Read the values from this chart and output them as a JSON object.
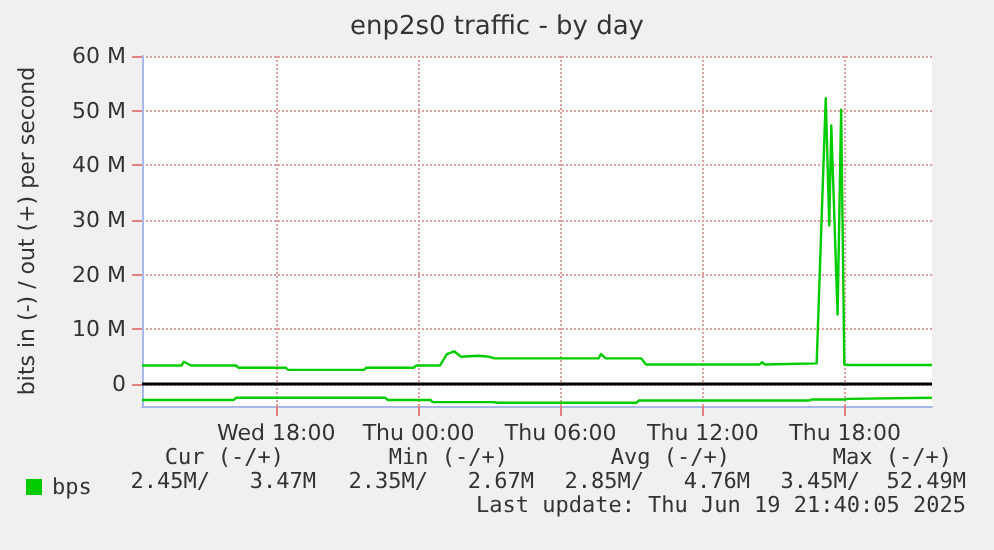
{
  "chart_data": {
    "type": "line",
    "title": "enp2s0 traffic - by day",
    "ylabel": "bits in (-) / out (+) per second",
    "xlim": [
      "2025-06-18T12:20",
      "2025-06-19T21:40"
    ],
    "xticks": [
      {
        "value": "2025-06-18T18:00",
        "label": "Wed 18:00"
      },
      {
        "value": "2025-06-19T00:00",
        "label": "Thu 00:00"
      },
      {
        "value": "2025-06-19T06:00",
        "label": "Thu 06:00"
      },
      {
        "value": "2025-06-19T12:00",
        "label": "Thu 12:00"
      },
      {
        "value": "2025-06-19T18:00",
        "label": "Thu 18:00"
      }
    ],
    "ylim": [
      -4,
      60
    ],
    "yticks": [
      {
        "value": 0,
        "label": "0"
      },
      {
        "value": 10,
        "label": "10 M"
      },
      {
        "value": 20,
        "label": "20 M"
      },
      {
        "value": 30,
        "label": "30 M"
      },
      {
        "value": 40,
        "label": "40 M"
      },
      {
        "value": 50,
        "label": "50 M"
      },
      {
        "value": 60,
        "label": "60 M"
      }
    ],
    "grid": true,
    "legend": "bottom left",
    "marker": "none",
    "line_style": "solid",
    "series": [
      {
        "name": "bps",
        "color": "#00cc00",
        "x": [
          "2025-06-18T12:20",
          "2025-06-18T14:00",
          "2025-06-18T14:06",
          "2025-06-18T14:24",
          "2025-06-18T16:18",
          "2025-06-18T16:24",
          "2025-06-18T18:24",
          "2025-06-18T18:30",
          "2025-06-18T21:42",
          "2025-06-18T21:48",
          "2025-06-18T23:48",
          "2025-06-18T23:54",
          "2025-06-19T00:54",
          "2025-06-19T01:12",
          "2025-06-19T01:30",
          "2025-06-19T01:48",
          "2025-06-19T02:30",
          "2025-06-19T03:00",
          "2025-06-19T03:12",
          "2025-06-19T07:36",
          "2025-06-19T07:42",
          "2025-06-19T07:54",
          "2025-06-19T09:24",
          "2025-06-19T09:36",
          "2025-06-19T14:24",
          "2025-06-19T14:30",
          "2025-06-19T14:36",
          "2025-06-19T16:48",
          "2025-06-19T17:11",
          "2025-06-19T17:20",
          "2025-06-19T17:25",
          "2025-06-19T17:41",
          "2025-06-19T17:50",
          "2025-06-19T17:58",
          "2025-06-19T18:12",
          "2025-06-19T21:40"
        ],
        "values": [
          3.4,
          3.4,
          4.1,
          3.4,
          3.4,
          3.0,
          3.0,
          2.6,
          2.6,
          3.0,
          3.0,
          3.4,
          3.4,
          5.5,
          6.0,
          5.0,
          5.2,
          5.0,
          4.7,
          4.7,
          5.5,
          4.7,
          4.7,
          3.6,
          3.6,
          4.0,
          3.6,
          3.8,
          52.3,
          29,
          47.3,
          12.7,
          50.2,
          3.6,
          3.5,
          3.5
        ]
      },
      {
        "color": "#00cc00",
        "x": [
          "2025-06-18T12:20",
          "2025-06-18T16:12",
          "2025-06-18T16:18",
          "2025-06-18T22:36",
          "2025-06-18T22:42",
          "2025-06-19T00:30",
          "2025-06-19T00:36",
          "2025-06-19T03:12",
          "2025-06-19T03:18",
          "2025-06-19T09:12",
          "2025-06-19T09:18",
          "2025-06-19T16:30",
          "2025-06-19T16:36",
          "2025-06-19T18:00",
          "2025-06-19T18:06",
          "2025-06-19T21:40"
        ],
        "values": [
          -2.9,
          -2.9,
          -2.5,
          -2.5,
          -2.9,
          -2.9,
          -3.3,
          -3.3,
          -3.4,
          -3.4,
          -3.0,
          -3.0,
          -2.8,
          -2.8,
          -2.7,
          -2.5
        ]
      }
    ],
    "ref_lines": [
      {
        "axis": "y",
        "value": 0,
        "color": "#000000"
      }
    ],
    "annotations": [
      "Cur (-/+)",
      "Min (-/+)",
      "Avg (-/+)",
      "Max (-/+)",
      "2.45M/   3.47M",
      "2.35M/   2.67M",
      "2.85M/   4.76M",
      "3.45M/  52.49M",
      "Last update: Thu Jun 19 21:40:05 2025"
    ]
  }
}
